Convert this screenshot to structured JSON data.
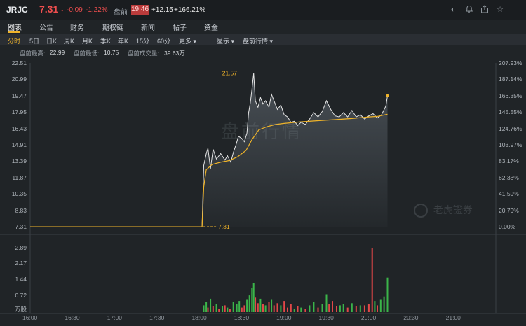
{
  "header": {
    "symbol": "JRJC",
    "price": "7.31",
    "arrow": "↓",
    "change": "-0.09",
    "change_pct": "-1.22%",
    "premarket_label": "盘前",
    "premarket_price": "19.46",
    "premarket_change": "+12.15",
    "premarket_change_pct": "+166.21%",
    "icons": [
      "contrast-icon",
      "bell-icon",
      "share-icon",
      "star-icon"
    ]
  },
  "tabs": [
    {
      "label": "图表",
      "active": true
    },
    {
      "label": "公告",
      "active": false
    },
    {
      "label": "财务",
      "active": false
    },
    {
      "label": "期权链",
      "active": false
    },
    {
      "label": "新闻",
      "active": false
    },
    {
      "label": "帖子",
      "active": false
    },
    {
      "label": "资金",
      "active": false
    }
  ],
  "periods": [
    {
      "label": "分时",
      "active": true
    },
    {
      "label": "5日",
      "active": false
    },
    {
      "label": "日K",
      "active": false
    },
    {
      "label": "周K",
      "active": false
    },
    {
      "label": "月K",
      "active": false
    },
    {
      "label": "季K",
      "active": false
    },
    {
      "label": "年K",
      "active": false
    },
    {
      "label": "15分",
      "active": false
    },
    {
      "label": "60分",
      "active": false
    },
    {
      "label": "更多 ▾",
      "active": false
    },
    {
      "label": "显示 ▾",
      "active": false
    },
    {
      "label": "盘前行情 ▾",
      "active": false
    }
  ],
  "stats": {
    "high_label": "盘前最高:",
    "high_value": "22.99",
    "low_label": "盘前最低:",
    "low_value": "10.75",
    "vol_label": "盘前成交量:",
    "vol_value": "39.63万"
  },
  "watermark": "盘前行情",
  "logo_text": "老虎證券",
  "chart_data": {
    "type": "line",
    "y_ticks": [
      "22.51",
      "20.99",
      "19.47",
      "17.95",
      "16.43",
      "14.91",
      "13.39",
      "11.87",
      "10.35",
      "8.83",
      "7.31"
    ],
    "pct_ticks": [
      "207.93%",
      "187.14%",
      "166.35%",
      "145.55%",
      "124.76%",
      "103.97%",
      "83.17%",
      "62.38%",
      "41.59%",
      "20.79%",
      "0.00%"
    ],
    "vol_ticks": [
      "2.89",
      "2.17",
      "1.44",
      "0.72",
      "万股"
    ],
    "x_ticks": [
      "16:00",
      "16:30",
      "17:00",
      "17:30",
      "18:00",
      "18:30",
      "19:00",
      "19:30",
      "20:00",
      "20:30",
      "21:00"
    ],
    "ylim": [
      7.31,
      22.51
    ],
    "prev_close": 7.31,
    "annotation_high": "21.57",
    "annotation_low": "7.31",
    "colors": {
      "price": "#e6e6e6",
      "avg": "#f0b429",
      "up": "#3bb54a",
      "down": "#e24848"
    },
    "price_points": [
      [
        18.03,
        7.31
      ],
      [
        18.05,
        13.0
      ],
      [
        18.08,
        14.1
      ],
      [
        18.1,
        14.6
      ],
      [
        18.13,
        12.7
      ],
      [
        18.16,
        14.5
      ],
      [
        18.2,
        13.6
      ],
      [
        18.25,
        14.1
      ],
      [
        18.3,
        13.5
      ],
      [
        18.33,
        13.9
      ],
      [
        18.37,
        13.3
      ],
      [
        18.4,
        14.2
      ],
      [
        18.43,
        14.9
      ],
      [
        18.46,
        15.7
      ],
      [
        18.5,
        15.5
      ],
      [
        18.53,
        15.2
      ],
      [
        18.56,
        16.0
      ],
      [
        18.58,
        17.9
      ],
      [
        18.6,
        18.8
      ],
      [
        18.62,
        20.1
      ],
      [
        18.64,
        21.57
      ],
      [
        18.66,
        19.0
      ],
      [
        18.69,
        18.4
      ],
      [
        18.72,
        19.3
      ],
      [
        18.75,
        18.7
      ],
      [
        18.78,
        19.0
      ],
      [
        18.82,
        18.4
      ],
      [
        18.85,
        19.6
      ],
      [
        18.88,
        19.0
      ],
      [
        18.92,
        18.2
      ],
      [
        18.96,
        18.6
      ],
      [
        19.0,
        17.7
      ],
      [
        19.04,
        17.5
      ],
      [
        19.08,
        17.0
      ],
      [
        19.12,
        17.1
      ],
      [
        19.16,
        16.7
      ],
      [
        19.2,
        17.0
      ],
      [
        19.25,
        16.8
      ],
      [
        19.3,
        17.3
      ],
      [
        19.35,
        17.9
      ],
      [
        19.4,
        17.5
      ],
      [
        19.45,
        18.0
      ],
      [
        19.5,
        19.0
      ],
      [
        19.55,
        18.2
      ],
      [
        19.6,
        17.6
      ],
      [
        19.65,
        17.5
      ],
      [
        19.7,
        17.9
      ],
      [
        19.75,
        17.5
      ],
      [
        19.8,
        18.1
      ],
      [
        19.85,
        17.5
      ],
      [
        19.9,
        17.7
      ],
      [
        19.95,
        17.3
      ],
      [
        20.0,
        17.6
      ],
      [
        20.05,
        17.8
      ],
      [
        20.1,
        17.4
      ],
      [
        20.15,
        17.7
      ],
      [
        20.2,
        18.5
      ],
      [
        20.22,
        19.46
      ]
    ],
    "avg_points": [
      [
        18.03,
        7.31
      ],
      [
        18.05,
        11.0
      ],
      [
        18.08,
        12.6
      ],
      [
        18.15,
        13.1
      ],
      [
        18.25,
        13.3
      ],
      [
        18.35,
        13.45
      ],
      [
        18.45,
        13.8
      ],
      [
        18.55,
        14.4
      ],
      [
        18.62,
        15.4
      ],
      [
        18.7,
        16.3
      ],
      [
        18.8,
        16.6
      ],
      [
        18.9,
        16.8
      ],
      [
        19.0,
        16.9
      ],
      [
        19.2,
        17.05
      ],
      [
        19.4,
        17.15
      ],
      [
        19.6,
        17.25
      ],
      [
        19.8,
        17.35
      ],
      [
        20.0,
        17.5
      ],
      [
        20.1,
        17.55
      ],
      [
        20.22,
        17.75
      ]
    ],
    "volume_bars": [
      [
        18.05,
        0.3,
        "up"
      ],
      [
        18.08,
        0.45,
        "up"
      ],
      [
        18.1,
        0.2,
        "down"
      ],
      [
        18.13,
        0.6,
        "up"
      ],
      [
        18.16,
        0.25,
        "down"
      ],
      [
        18.2,
        0.35,
        "up"
      ],
      [
        18.23,
        0.15,
        "down"
      ],
      [
        18.27,
        0.25,
        "up"
      ],
      [
        18.3,
        0.3,
        "down"
      ],
      [
        18.33,
        0.2,
        "up"
      ],
      [
        18.36,
        0.15,
        "down"
      ],
      [
        18.4,
        0.45,
        "up"
      ],
      [
        18.44,
        0.35,
        "up"
      ],
      [
        18.47,
        0.5,
        "up"
      ],
      [
        18.5,
        0.2,
        "down"
      ],
      [
        18.53,
        0.3,
        "down"
      ],
      [
        18.56,
        0.55,
        "up"
      ],
      [
        18.59,
        0.75,
        "up"
      ],
      [
        18.62,
        1.1,
        "up"
      ],
      [
        18.64,
        1.3,
        "up"
      ],
      [
        18.66,
        0.65,
        "down"
      ],
      [
        18.69,
        0.4,
        "down"
      ],
      [
        18.72,
        0.6,
        "up"
      ],
      [
        18.75,
        0.35,
        "down"
      ],
      [
        18.78,
        0.3,
        "up"
      ],
      [
        18.82,
        0.45,
        "down"
      ],
      [
        18.85,
        0.55,
        "up"
      ],
      [
        18.88,
        0.3,
        "down"
      ],
      [
        18.92,
        0.4,
        "down"
      ],
      [
        18.96,
        0.3,
        "up"
      ],
      [
        19.0,
        0.5,
        "down"
      ],
      [
        19.04,
        0.2,
        "down"
      ],
      [
        19.08,
        0.35,
        "down"
      ],
      [
        19.12,
        0.15,
        "up"
      ],
      [
        19.16,
        0.25,
        "down"
      ],
      [
        19.2,
        0.2,
        "up"
      ],
      [
        19.25,
        0.15,
        "down"
      ],
      [
        19.3,
        0.3,
        "up"
      ],
      [
        19.35,
        0.45,
        "up"
      ],
      [
        19.4,
        0.2,
        "down"
      ],
      [
        19.45,
        0.35,
        "up"
      ],
      [
        19.5,
        0.8,
        "up"
      ],
      [
        19.53,
        0.35,
        "down"
      ],
      [
        19.57,
        0.5,
        "down"
      ],
      [
        19.62,
        0.25,
        "down"
      ],
      [
        19.66,
        0.3,
        "up"
      ],
      [
        19.7,
        0.35,
        "up"
      ],
      [
        19.75,
        0.2,
        "down"
      ],
      [
        19.8,
        0.4,
        "up"
      ],
      [
        19.85,
        0.25,
        "down"
      ],
      [
        19.9,
        0.3,
        "up"
      ],
      [
        19.95,
        0.3,
        "down"
      ],
      [
        20.0,
        0.35,
        "down"
      ],
      [
        20.04,
        2.89,
        "down"
      ],
      [
        20.07,
        0.5,
        "up"
      ],
      [
        20.1,
        0.3,
        "down"
      ],
      [
        20.14,
        0.55,
        "up"
      ],
      [
        20.18,
        0.7,
        "up"
      ],
      [
        20.22,
        1.55,
        "up"
      ]
    ]
  }
}
